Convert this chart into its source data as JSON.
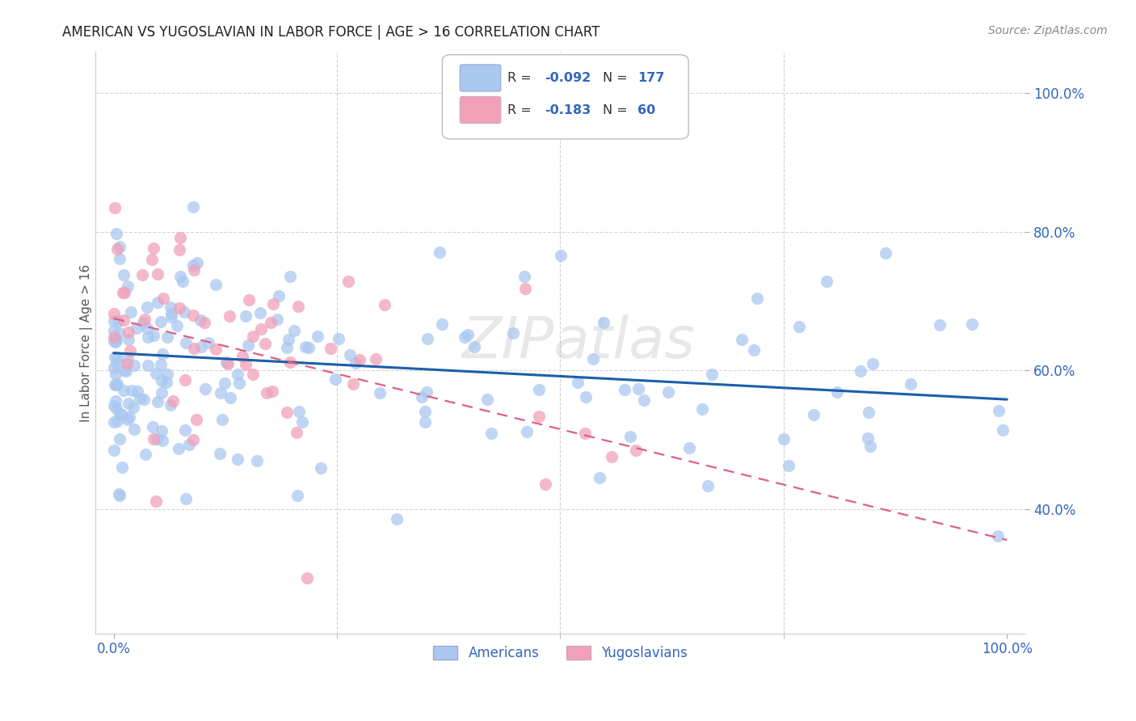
{
  "title": "AMERICAN VS YUGOSLAVIAN IN LABOR FORCE | AGE > 16 CORRELATION CHART",
  "source": "Source: ZipAtlas.com",
  "ylabel": "In Labor Force | Age > 16",
  "american_color": "#aac8f0",
  "yugoslav_color": "#f0a0b8",
  "american_line_color": "#1a5fa8",
  "yugoslav_line_color": "#e06080",
  "watermark_text": "ZIPatlas",
  "background_color": "#ffffff",
  "grid_color": "#d0d0d0",
  "text_color_blue": "#3366bb",
  "text_color_dark": "#444444",
  "am_line_y_start": 0.625,
  "am_line_y_end": 0.558,
  "yu_line_y_start": 0.675,
  "yu_line_y_end": 0.355,
  "xlim": [
    -0.02,
    1.02
  ],
  "ylim": [
    0.22,
    1.06
  ],
  "ytick_positions": [
    0.4,
    0.6,
    0.8,
    1.0
  ],
  "ytick_labels": [
    "40.0%",
    "60.0%",
    "80.0%",
    "100.0%"
  ],
  "xtick_positions": [
    0.0,
    1.0
  ],
  "xtick_labels": [
    "0.0%",
    "100.0%"
  ],
  "figsize": [
    14.06,
    8.92
  ],
  "dpi": 100
}
